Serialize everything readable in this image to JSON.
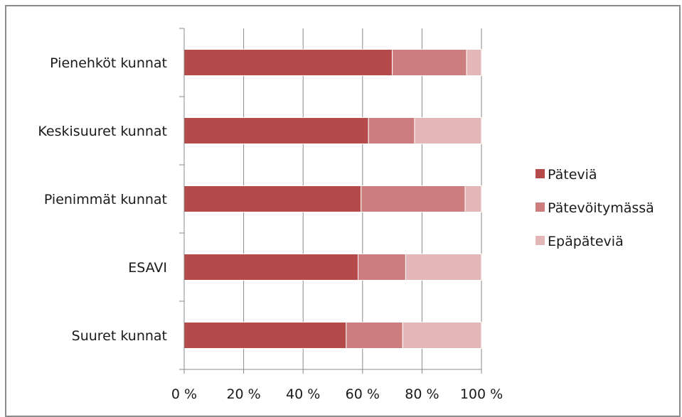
{
  "chart_data": {
    "type": "bar",
    "orientation": "horizontal",
    "stacked": "percent",
    "categories": [
      "Pienehköt kunnat",
      "Keskisuuret kunnat",
      "Pienimmät kunnat",
      "ESAVI",
      "Suuret kunnat"
    ],
    "series": [
      {
        "name": "Päteviä",
        "color": "#b54a4a",
        "values": [
          70,
          62,
          59.5,
          58.5,
          54.5
        ]
      },
      {
        "name": "Pätevöitymässä",
        "color": "#cc7d7d",
        "values": [
          25,
          15.5,
          35,
          16,
          19
        ]
      },
      {
        "name": "Epäpäteviä",
        "color": "#e3b7b7",
        "values": [
          5,
          22.5,
          5.5,
          25.5,
          26.5
        ]
      }
    ],
    "x_ticks": [
      "0 %",
      "20 %",
      "40 %",
      "60 %",
      "80 %",
      "100 %"
    ],
    "xlim": [
      0,
      100
    ],
    "grid": true,
    "legend_position": "right",
    "title": "",
    "xlabel": "",
    "ylabel": ""
  }
}
